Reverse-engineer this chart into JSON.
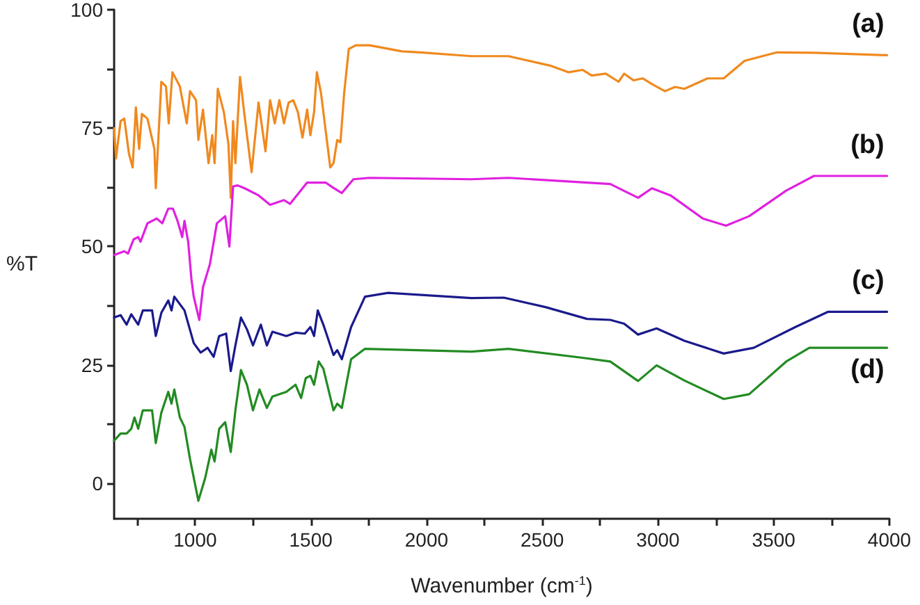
{
  "chart_data": {
    "type": "line",
    "xlabel": "Wavenumber (cm$^{-1}$)",
    "ylabel": "%T",
    "xlim": [
      650,
      4000
    ],
    "ylim": [
      -7.5,
      100
    ],
    "xticks": [
      {
        "value": 750,
        "label": null
      },
      1000,
      {
        "value": 1250,
        "label": null
      },
      1500,
      {
        "value": 1750,
        "label": null
      },
      2000,
      {
        "value": 2250,
        "label": null
      },
      2500,
      {
        "value": 2750,
        "label": null
      },
      3000,
      {
        "value": 3250,
        "label": null
      },
      3500,
      {
        "value": 3750,
        "label": null
      },
      4000
    ],
    "yticks": [
      0,
      {
        "value": 12.5,
        "label": null
      },
      25,
      {
        "value": 37.5,
        "label": null
      },
      50,
      {
        "value": 62.5,
        "label": null
      },
      75,
      {
        "value": 87.5,
        "label": null
      },
      100
    ],
    "grid": false,
    "legend": false,
    "marker": "none",
    "line_style": "solid",
    "series": [
      {
        "name": "(a)",
        "color": "#f0891e",
        "x": [
          650,
          658,
          678,
          694,
          714,
          730,
          744,
          758,
          770,
          794,
          824,
          830,
          854,
          874,
          886,
          902,
          934,
          964,
          978,
          1004,
          1014,
          1034,
          1058,
          1074,
          1084,
          1098,
          1124,
          1144,
          1154,
          1164,
          1174,
          1194,
          1214,
          1244,
          1274,
          1304,
          1324,
          1344,
          1364,
          1384,
          1404,
          1424,
          1444,
          1464,
          1484,
          1498,
          1514,
          1526,
          1544,
          1564,
          1584,
          1598,
          1614,
          1628,
          1644,
          1664,
          1694,
          1754,
          1894,
          1974,
          2194,
          2354,
          2534,
          2614,
          2674,
          2714,
          2774,
          2830,
          2854,
          2894,
          2934,
          2974,
          3030,
          3074,
          3114,
          3214,
          3284,
          3374,
          3514,
          3674,
          3990
        ],
        "values": [
          75,
          68.6,
          76.5,
          77,
          69.6,
          66.7,
          79.4,
          70.6,
          78,
          77,
          70.6,
          62.3,
          84.8,
          83.8,
          76,
          86.8,
          83.8,
          76,
          82.8,
          80.9,
          72.5,
          78.9,
          67.6,
          73.5,
          67.6,
          83.3,
          78.4,
          71.6,
          60.3,
          76.5,
          67.6,
          85.8,
          77.5,
          65.7,
          80.4,
          70.1,
          80.9,
          76,
          80.9,
          76,
          80.4,
          80.9,
          78.4,
          73,
          78.9,
          73.5,
          78.4,
          86.8,
          82.4,
          74.5,
          66.7,
          67.6,
          72.5,
          72,
          82.4,
          91.7,
          92.5,
          92.5,
          91.2,
          91,
          90.2,
          90.2,
          88.2,
          86.8,
          87.3,
          86.1,
          86.5,
          84.8,
          86.5,
          85.1,
          85.5,
          84.3,
          82.8,
          83.7,
          83.3,
          85.5,
          85.5,
          89.2,
          91,
          90.9,
          90.4
        ]
      },
      {
        "name": "(b)",
        "color": "#e020e0",
        "x": [
          650,
          694,
          710,
          734,
          754,
          764,
          794,
          834,
          858,
          884,
          904,
          924,
          944,
          954,
          970,
          984,
          994,
          1018,
          1034,
          1064,
          1074,
          1094,
          1130,
          1148,
          1164,
          1184,
          1214,
          1274,
          1324,
          1384,
          1410,
          1484,
          1564,
          1594,
          1634,
          1684,
          1754,
          2194,
          2354,
          2794,
          2914,
          2974,
          3054,
          3194,
          3294,
          3394,
          3554,
          3674,
          3990
        ],
        "values": [
          48.2,
          49,
          48.5,
          51.5,
          52,
          51,
          54.9,
          55.9,
          54.9,
          58,
          58,
          55.4,
          52,
          55.4,
          51,
          43.1,
          39.4,
          34.5,
          41.4,
          46.3,
          49.2,
          54.9,
          56.4,
          50,
          62.7,
          62.9,
          62.3,
          60.8,
          58.8,
          59.8,
          59,
          63.5,
          63.5,
          62.5,
          61.3,
          64.2,
          64.5,
          64.2,
          64.5,
          63.2,
          60.3,
          62.3,
          60.8,
          55.9,
          54.4,
          56.4,
          61.8,
          64.9,
          64.9
        ]
      },
      {
        "name": "(c)",
        "color": "#1a1a8c",
        "x": [
          650,
          678,
          704,
          724,
          754,
          774,
          814,
          830,
          854,
          884,
          898,
          910,
          954,
          994,
          1024,
          1054,
          1080,
          1104,
          1134,
          1154,
          1174,
          1198,
          1224,
          1250,
          1284,
          1310,
          1334,
          1394,
          1434,
          1474,
          1498,
          1514,
          1530,
          1554,
          1598,
          1614,
          1634,
          1674,
          1734,
          1834,
          2194,
          2334,
          2514,
          2694,
          2794,
          2854,
          2914,
          2994,
          3114,
          3284,
          3414,
          3594,
          3734,
          3990
        ],
        "values": [
          35,
          35.5,
          33.5,
          35.7,
          33.5,
          36.5,
          36.5,
          31.1,
          36,
          38.6,
          36.5,
          39.4,
          36.5,
          29.6,
          27.6,
          28.6,
          26.7,
          31.1,
          31.6,
          23.7,
          29.1,
          35,
          32.5,
          29.1,
          33.5,
          29.1,
          32,
          31.1,
          31.8,
          31.6,
          33,
          31.1,
          36.5,
          33.5,
          27.1,
          28.1,
          26.2,
          33,
          39.4,
          40.2,
          39.1,
          39.2,
          37.2,
          34.7,
          34.5,
          33.7,
          31.4,
          32.7,
          30.1,
          27.4,
          28.6,
          33,
          36.2,
          36.2
        ]
      },
      {
        "name": "(d)",
        "color": "#228b22",
        "x": [
          650,
          678,
          704,
          724,
          738,
          754,
          774,
          814,
          830,
          854,
          884,
          898,
          910,
          934,
          954,
          978,
          1014,
          1044,
          1070,
          1084,
          1104,
          1130,
          1154,
          1174,
          1198,
          1224,
          1250,
          1278,
          1310,
          1334,
          1394,
          1434,
          1458,
          1478,
          1498,
          1514,
          1534,
          1554,
          1598,
          1614,
          1634,
          1674,
          1734,
          2194,
          2354,
          2674,
          2794,
          2914,
          2994,
          3114,
          3284,
          3394,
          3554,
          3654,
          3990
        ],
        "values": [
          9,
          10.5,
          10.5,
          11.5,
          13.9,
          11.5,
          15.4,
          15.4,
          8.5,
          14.9,
          19.3,
          16.8,
          19.8,
          13.9,
          11.9,
          5.1,
          -3.7,
          1.2,
          7.1,
          4.6,
          11.5,
          12.9,
          6.6,
          15.4,
          23.9,
          20.8,
          15.4,
          19.8,
          15.9,
          18.3,
          19.3,
          20.8,
          18,
          22.2,
          22.7,
          20.8,
          25.7,
          24.2,
          15.4,
          16.8,
          15.9,
          26.2,
          28.4,
          27.8,
          28.4,
          26.5,
          25.7,
          21.6,
          24.9,
          21.7,
          17.8,
          18.8,
          25.7,
          28.6,
          28.6
        ]
      }
    ]
  }
}
